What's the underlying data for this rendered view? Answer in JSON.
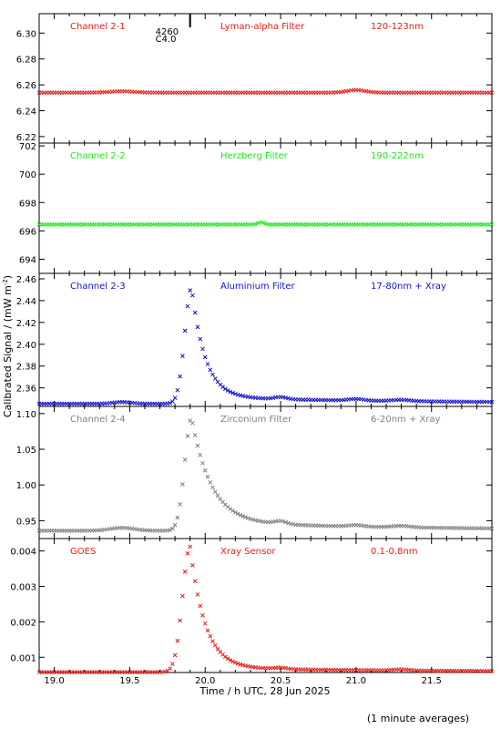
{
  "figure": {
    "ylabel_main": "Calibrated Signal / (mW m",
    "ylabel_sup": "-2",
    "ylabel_tail": ")",
    "xlabel": "Time / h UTC, 28 Jun 2025",
    "footnote": "(1 minute averages)",
    "event_marker": {
      "line1": "4260",
      "line2": "C4.0",
      "x": 19.9
    },
    "x_ticks": [
      "19.0",
      "19.5",
      "20.0",
      "20.5",
      "21.0",
      "21.5"
    ]
  },
  "chart_data": [
    {
      "type": "scatter",
      "channel": "Channel 2-1",
      "filter": "Lyman-alpha Filter",
      "band": "120-123nm",
      "color": "#e0201c",
      "xlim": [
        18.9,
        21.9
      ],
      "ylim": [
        6.215,
        6.315
      ],
      "yticks": [
        6.22,
        6.24,
        6.26,
        6.28,
        6.3
      ],
      "ytick_labels": [
        "6.22",
        "6.24",
        "6.26",
        "6.28",
        "6.30"
      ],
      "profile": {
        "baseline": 6.254,
        "bumps": [
          [
            19.45,
            0.001,
            0.08
          ],
          [
            21.0,
            0.002,
            0.06
          ]
        ]
      }
    },
    {
      "type": "scatter",
      "channel": "Channel 2-2",
      "filter": "Herzberg Filter",
      "band": "190-222nm",
      "color": "#1ee81e",
      "xlim": [
        18.9,
        21.9
      ],
      "ylim": [
        693.0,
        702.2
      ],
      "yticks": [
        694,
        696,
        698,
        700,
        702
      ],
      "ytick_labels": [
        "694",
        "696",
        "698",
        "700",
        "702"
      ],
      "profile": {
        "baseline": 696.45,
        "bumps": [
          [
            20.37,
            0.15,
            0.02
          ]
        ]
      }
    },
    {
      "type": "scatter",
      "channel": "Channel 2-3",
      "filter": "Aluminium Filter",
      "band": "17-80nm + Xray",
      "color": "#1414c8",
      "xlim": [
        18.9,
        21.9
      ],
      "ylim": [
        2.343,
        2.465
      ],
      "yticks": [
        2.36,
        2.38,
        2.4,
        2.42,
        2.44,
        2.46
      ],
      "ytick_labels": [
        "2.36",
        "2.38",
        "2.40",
        "2.42",
        "2.44",
        "2.46"
      ],
      "profile": {
        "baseline": 2.3455,
        "peak_x": 19.91,
        "peak_y": 2.452,
        "rise": 0.045,
        "decay": 0.09,
        "tail": 0.006,
        "bumps": [
          [
            19.45,
            0.0015,
            0.06
          ],
          [
            20.5,
            0.002,
            0.04
          ],
          [
            21.0,
            0.0015,
            0.05
          ],
          [
            21.3,
            0.0012,
            0.06
          ]
        ]
      }
    },
    {
      "type": "scatter",
      "channel": "Channel 2-4",
      "filter": "Zirconium Filter",
      "band": "6-20nm + Xray",
      "color": "#808080",
      "xlim": [
        18.9,
        21.9
      ],
      "ylim": [
        0.925,
        1.11
      ],
      "yticks": [
        0.95,
        1.0,
        1.05,
        1.1
      ],
      "ytick_labels": [
        "0.95",
        "1.00",
        "1.05",
        "1.10"
      ],
      "profile": {
        "baseline": 0.936,
        "peak_x": 19.91,
        "peak_y": 1.094,
        "rise": 0.045,
        "decay": 0.13,
        "tail": 0.012,
        "bumps": [
          [
            19.45,
            0.004,
            0.08
          ],
          [
            20.5,
            0.004,
            0.04
          ],
          [
            21.0,
            0.002,
            0.05
          ],
          [
            21.3,
            0.002,
            0.06
          ]
        ]
      }
    },
    {
      "type": "scatter",
      "channel": "GOES",
      "filter": "Xray Sensor",
      "band": "0.1-0.8nm",
      "color": "#e0201c",
      "xlim": [
        18.9,
        21.9
      ],
      "ylim": [
        0.00057,
        0.00435
      ],
      "yticks": [
        0.001,
        0.002,
        0.003,
        0.004
      ],
      "ytick_labels": [
        "0.001",
        "0.002",
        "0.003",
        "0.004"
      ],
      "profile": {
        "baseline": 0.00058,
        "peak_x": 19.9,
        "peak_y": 0.00412,
        "rise": 0.05,
        "decay": 0.1,
        "tail": 0.00012,
        "bumps": [
          [
            20.5,
            4e-05,
            0.04
          ],
          [
            21.3,
            3e-05,
            0.05
          ]
        ]
      }
    }
  ]
}
